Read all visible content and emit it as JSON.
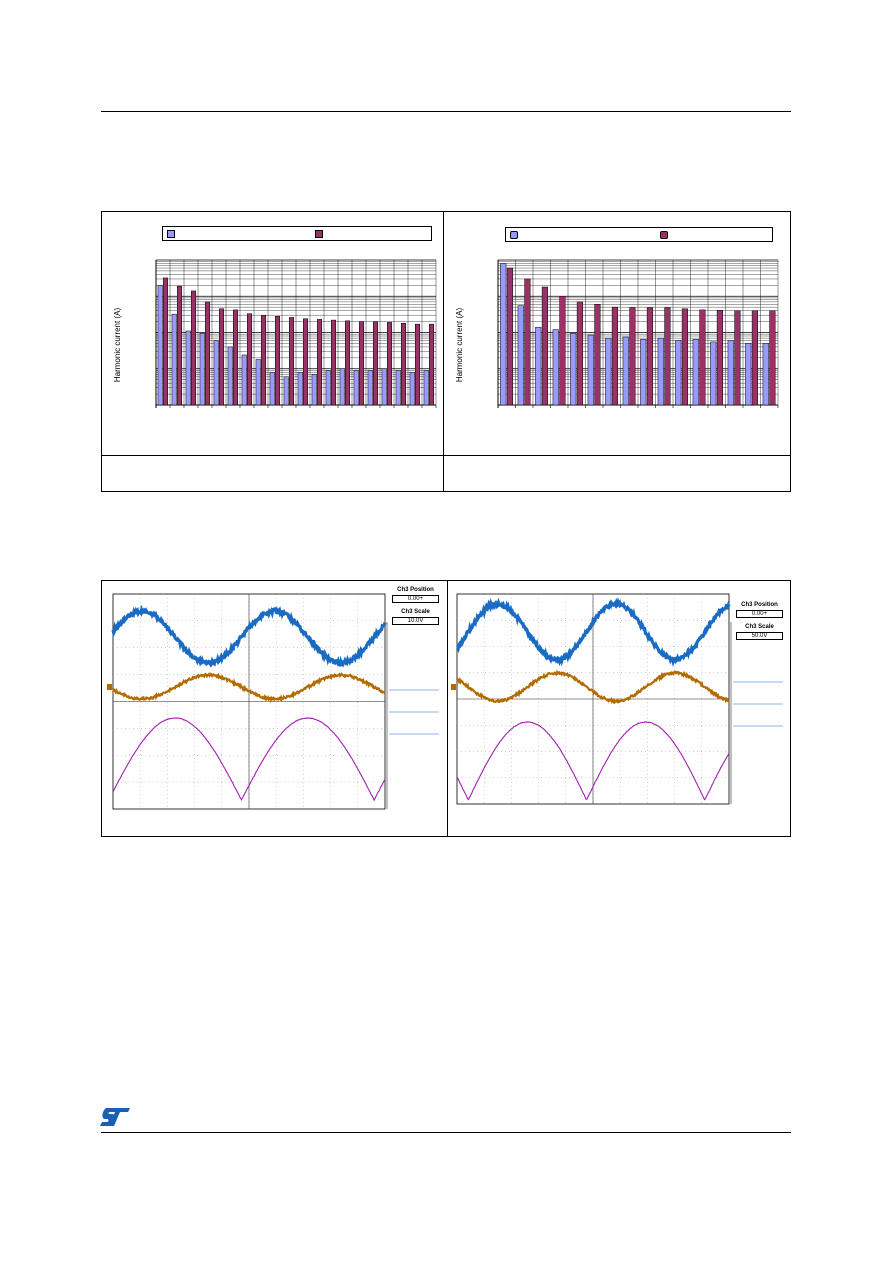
{
  "charts": [
    {
      "id": "left",
      "chart_data": {
        "type": "bar",
        "yscale": "log",
        "ylim": [
          1,
          10000
        ],
        "ylabel": "Harmonic current (A)",
        "n_categories": 20,
        "series": [
          {
            "color": "#9999ff",
            "values": [
              2000,
              320,
              110,
              95,
              60,
              40,
              24,
              18,
              8,
              6,
              8,
              7,
              9,
              10,
              9,
              9,
              10,
              9,
              8,
              9
            ]
          },
          {
            "color": "#993366",
            "values": [
              3200,
              1900,
              1400,
              700,
              450,
              420,
              330,
              300,
              280,
              260,
              240,
              230,
              220,
              210,
              200,
              200,
              190,
              180,
              170,
              170
            ]
          }
        ]
      }
    },
    {
      "id": "right",
      "chart_data": {
        "type": "bar",
        "yscale": "log",
        "ylim": [
          1,
          10000
        ],
        "ylabel": "Harmonic current (A)",
        "n_categories": 16,
        "series": [
          {
            "color": "#9999ff",
            "values": [
              8000,
              550,
              140,
              120,
              95,
              85,
              70,
              75,
              65,
              70,
              60,
              65,
              55,
              60,
              50,
              50
            ]
          },
          {
            "color": "#993366",
            "values": [
              6000,
              3000,
              1800,
              1000,
              700,
              600,
              500,
              480,
              480,
              480,
              450,
              420,
              410,
              400,
              400,
              400
            ]
          }
        ]
      }
    }
  ],
  "scopes": [
    {
      "id": "left-scope",
      "trace_colors": {
        "ch1": "#1a6bc4",
        "ch2": "#b36b00",
        "ch3": "#a020b0"
      },
      "panel": {
        "pos_title": "Ch3 Position",
        "pos_value": "0.00+",
        "scale_title": "Ch3 Scale",
        "scale_value": "10.0V"
      }
    },
    {
      "id": "right-scope",
      "trace_colors": {
        "ch1": "#1a6bc4",
        "ch2": "#b36b00",
        "ch3": "#a020b0"
      },
      "panel": {
        "pos_title": "Ch3 Position",
        "pos_value": "0.00+",
        "scale_title": "Ch3 Scale",
        "scale_value": "50.0V"
      }
    }
  ]
}
